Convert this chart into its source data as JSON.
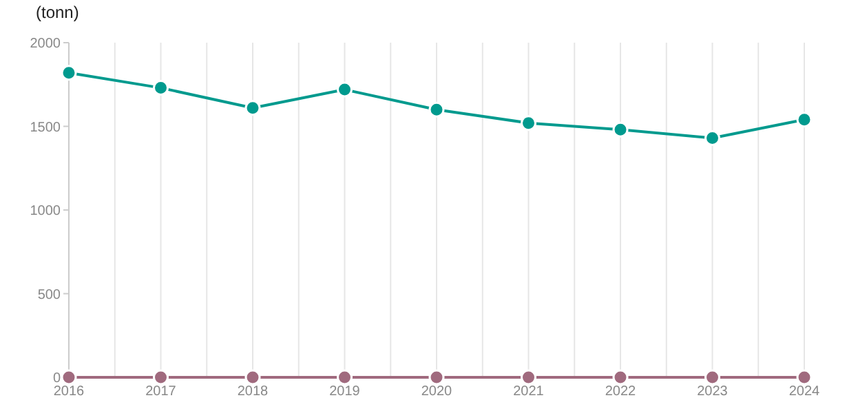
{
  "chart_data": {
    "type": "line",
    "ylabel": "(tonn)",
    "x": [
      2016,
      2017,
      2018,
      2019,
      2020,
      2021,
      2022,
      2023,
      2024
    ],
    "series": [
      {
        "color": "#009a8e",
        "values": [
          1820,
          1730,
          1610,
          1720,
          1600,
          1520,
          1480,
          1430,
          1540
        ]
      },
      {
        "color": "#a06a7e",
        "values": [
          0,
          0,
          0,
          0,
          0,
          0,
          0,
          0,
          0
        ]
      }
    ],
    "xlim": [
      2016,
      2024
    ],
    "xticks": [
      2016,
      {
        "value": 2016.5,
        "label": null
      },
      2017,
      {
        "value": 2017.5,
        "label": null
      },
      2018,
      {
        "value": 2018.5,
        "label": null
      },
      2019,
      {
        "value": 2019.5,
        "label": null
      },
      2020,
      {
        "value": 2020.5,
        "label": null
      },
      2021,
      {
        "value": 2021.5,
        "label": null
      },
      2022,
      {
        "value": 2022.5,
        "label": null
      },
      2023,
      {
        "value": 2023.5,
        "label": null
      },
      2024
    ],
    "ylim": [
      0,
      2000
    ],
    "yticks": [
      0,
      500,
      1000,
      1500,
      2000
    ],
    "grid": "x",
    "marker": "circle",
    "line_style": "solid"
  }
}
